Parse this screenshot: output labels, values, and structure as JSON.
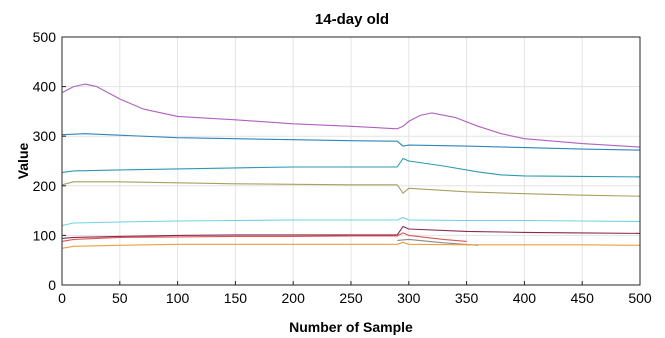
{
  "chart_data": {
    "type": "line",
    "title": "14-day old",
    "xlabel": "Number of Sample",
    "ylabel": "Value",
    "xlim": [
      0,
      500
    ],
    "ylim": [
      0,
      500
    ],
    "xticks": [
      "0",
      "50",
      "100",
      "150",
      "200",
      "250",
      "300",
      "350",
      "400",
      "450",
      "500"
    ],
    "yticks": [
      "0",
      "100",
      "200",
      "300",
      "400",
      "500"
    ],
    "grid": true,
    "legend": "none",
    "series": [
      {
        "color": "#b061c0",
        "x": [
          0,
          10,
          20,
          30,
          50,
          70,
          100,
          150,
          200,
          250,
          290,
          295,
          300,
          310,
          320,
          340,
          360,
          380,
          400,
          450,
          500
        ],
        "values": [
          388,
          400,
          405,
          400,
          375,
          355,
          340,
          333,
          325,
          320,
          315,
          320,
          330,
          342,
          347,
          338,
          320,
          305,
          295,
          285,
          278
        ]
      },
      {
        "color": "#2f86b8",
        "x": [
          0,
          20,
          50,
          100,
          150,
          200,
          250,
          290,
          295,
          300,
          350,
          400,
          450,
          500
        ],
        "values": [
          303,
          305,
          302,
          297,
          295,
          293,
          291,
          290,
          280,
          282,
          280,
          277,
          274,
          272
        ]
      },
      {
        "color": "#2a9bb0",
        "x": [
          0,
          10,
          50,
          100,
          150,
          200,
          250,
          290,
          295,
          300,
          330,
          360,
          380,
          400,
          450,
          500
        ],
        "values": [
          227,
          230,
          232,
          234,
          236,
          238,
          238,
          238,
          255,
          250,
          240,
          228,
          222,
          220,
          219,
          218
        ]
      },
      {
        "color": "#a8a060",
        "x": [
          0,
          10,
          50,
          100,
          150,
          200,
          250,
          290,
          295,
          300,
          350,
          400,
          450,
          500
        ],
        "values": [
          202,
          208,
          208,
          206,
          204,
          203,
          202,
          202,
          185,
          195,
          188,
          184,
          181,
          179
        ]
      },
      {
        "color": "#6fd3e3",
        "x": [
          0,
          10,
          50,
          100,
          150,
          200,
          250,
          290,
          295,
          300,
          350,
          400,
          450,
          500
        ],
        "values": [
          120,
          125,
          127,
          129,
          130,
          131,
          131,
          131,
          136,
          131,
          130,
          130,
          129,
          128
        ]
      },
      {
        "color": "#8b2a50",
        "x": [
          0,
          10,
          50,
          100,
          150,
          200,
          250,
          290,
          295,
          300,
          350,
          400,
          450,
          500
        ],
        "values": [
          94,
          96,
          98,
          100,
          101,
          101,
          101,
          101,
          118,
          113,
          108,
          106,
          105,
          104
        ]
      },
      {
        "color": "#e05555",
        "x": [
          0,
          10,
          50,
          100,
          150,
          200,
          250,
          290,
          295,
          300,
          330,
          350
        ],
        "values": [
          88,
          92,
          96,
          97,
          98,
          98,
          99,
          99,
          105,
          100,
          92,
          88
        ]
      },
      {
        "color": "#8a8a8a",
        "x": [
          290,
          300,
          330,
          360
        ],
        "values": [
          90,
          92,
          85,
          80
        ]
      },
      {
        "color": "#e8a040",
        "x": [
          0,
          10,
          50,
          100,
          150,
          200,
          250,
          290,
          295,
          300,
          350,
          400,
          450,
          500
        ],
        "values": [
          74,
          78,
          80,
          82,
          82,
          82,
          82,
          82,
          86,
          82,
          81,
          81,
          81,
          80
        ]
      }
    ]
  }
}
